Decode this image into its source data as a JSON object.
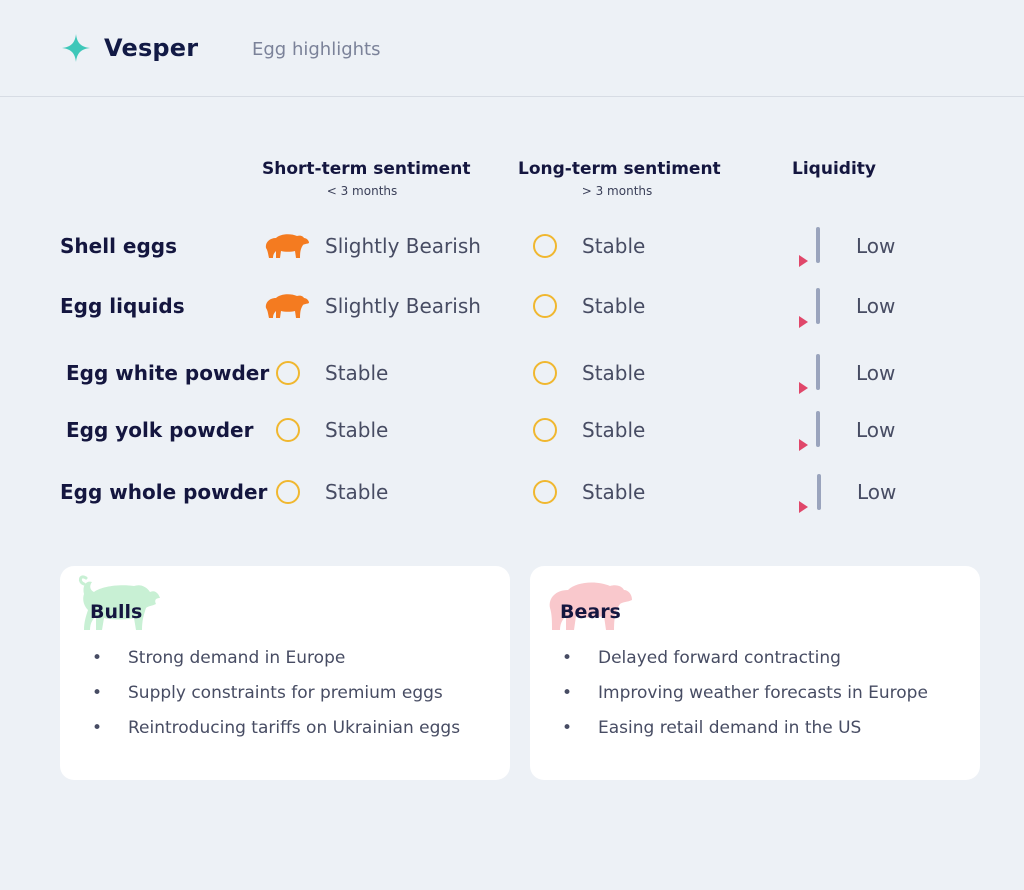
{
  "header": {
    "brand": "Vesper",
    "page_title": "Egg highlights",
    "accent": "#3ec7b9"
  },
  "columns": {
    "short": {
      "title": "Short-term sentiment",
      "sub": "< 3 months"
    },
    "long": {
      "title": "Long-term sentiment",
      "sub": "> 3 months"
    },
    "liquidity": {
      "title": "Liquidity"
    }
  },
  "rows": [
    {
      "product": "Shell eggs",
      "short_icon": "bear-icon",
      "short": "Slightly Bearish",
      "long_icon": "stable-circle-icon",
      "long": "Stable",
      "liquidity": "Low"
    },
    {
      "product": "Egg liquids",
      "short_icon": "bear-icon",
      "short": "Slightly Bearish",
      "long_icon": "stable-circle-icon",
      "long": "Stable",
      "liquidity": "Low"
    },
    {
      "product": "Egg white powder",
      "short_icon": "stable-circle-icon",
      "short": "Stable",
      "long_icon": "stable-circle-icon",
      "long": "Stable",
      "liquidity": "Low"
    },
    {
      "product": "Egg yolk powder",
      "short_icon": "stable-circle-icon",
      "short": "Stable",
      "long_icon": "stable-circle-icon",
      "long": "Stable",
      "liquidity": "Low"
    },
    {
      "product": "Egg whole powder",
      "short_icon": "stable-circle-icon",
      "short": "Stable",
      "long_icon": "stable-circle-icon",
      "long": "Stable",
      "liquidity": "Low"
    }
  ],
  "bulls": {
    "title": "Bulls",
    "icon": "bull-icon",
    "items": [
      "Strong demand in Europe",
      "Supply constraints for premium eggs",
      "Reintroducing tariffs on Ukrainian eggs"
    ]
  },
  "bears": {
    "title": "Bears",
    "icon": "bear-icon",
    "items": [
      "Delayed forward contracting",
      "Improving weather forecasts in Europe",
      "Easing retail demand in the US"
    ]
  },
  "colors": {
    "bearish": "#f47b20",
    "stable": "#f0b72f",
    "liquidity_marker": "#e0476a",
    "bull_bg": "#c8f0d4",
    "bear_bg": "#f9c8cc"
  }
}
